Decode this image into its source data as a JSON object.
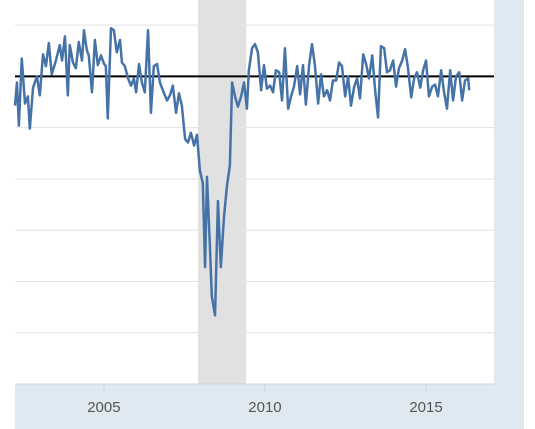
{
  "chart_data": {
    "type": "line",
    "x": [
      2002.24,
      2002.3,
      2002.36,
      2002.45,
      2002.55,
      2002.64,
      2002.7,
      2002.8,
      2002.92,
      2003.01,
      2003.11,
      2003.2,
      2003.29,
      2003.38,
      2003.51,
      2003.63,
      2003.7,
      2003.79,
      2003.88,
      2003.94,
      2004.04,
      2004.13,
      2004.22,
      2004.32,
      2004.38,
      2004.47,
      2004.53,
      2004.63,
      2004.72,
      2004.81,
      2004.91,
      2005.0,
      2005.06,
      2005.12,
      2005.22,
      2005.31,
      2005.4,
      2005.5,
      2005.56,
      2005.65,
      2005.75,
      2005.84,
      2005.93,
      2006.0,
      2006.09,
      2006.18,
      2006.27,
      2006.37,
      2006.46,
      2006.55,
      2006.65,
      2006.74,
      2006.83,
      2006.96,
      2007.05,
      2007.14,
      2007.24,
      2007.33,
      2007.42,
      2007.52,
      2007.61,
      2007.7,
      2007.8,
      2007.89,
      2007.98,
      2008.07,
      2008.14,
      2008.2,
      2008.29,
      2008.35,
      2008.45,
      2008.54,
      2008.63,
      2008.73,
      2008.82,
      2008.91,
      2008.98,
      2009.07,
      2009.16,
      2009.26,
      2009.35,
      2009.44,
      2009.5,
      2009.6,
      2009.69,
      2009.78,
      2009.88,
      2009.97,
      2010.06,
      2010.16,
      2010.25,
      2010.34,
      2010.44,
      2010.53,
      2010.62,
      2010.72,
      2010.81,
      2010.9,
      2011.0,
      2011.09,
      2011.18,
      2011.27,
      2011.37,
      2011.46,
      2011.55,
      2011.65,
      2011.74,
      2011.83,
      2011.93,
      2012.02,
      2012.11,
      2012.21,
      2012.3,
      2012.39,
      2012.49,
      2012.58,
      2012.67,
      2012.77,
      2012.86,
      2012.95,
      2013.05,
      2013.14,
      2013.23,
      2013.33,
      2013.42,
      2013.51,
      2013.6,
      2013.7,
      2013.79,
      2013.88,
      2013.98,
      2014.07,
      2014.16,
      2014.26,
      2014.35,
      2014.44,
      2014.54,
      2014.63,
      2014.72,
      2014.82,
      2014.91,
      2015.0,
      2015.09,
      2015.19,
      2015.28,
      2015.37,
      2015.47,
      2015.56,
      2015.65,
      2015.75,
      2015.84,
      2015.93,
      2016.03,
      2016.12,
      2016.21,
      2016.31,
      2016.34
    ],
    "series": [
      {
        "color": "#4572a7",
        "values": [
          -57,
          -12,
          -96,
          35,
          -53,
          -39,
          -102,
          -22,
          0,
          -37,
          43,
          20,
          65,
          4,
          31,
          61,
          31,
          78,
          -37,
          61,
          27,
          16,
          67,
          31,
          90,
          51,
          41,
          -31,
          71,
          22,
          41,
          25,
          20,
          -82,
          94,
          90,
          47,
          71,
          27,
          20,
          -4,
          -18,
          -4,
          -31,
          24,
          -12,
          -31,
          90,
          -71,
          20,
          24,
          -12,
          -27,
          -47,
          -37,
          -18,
          -71,
          -33,
          -57,
          -122,
          -129,
          -110,
          -135,
          -114,
          -184,
          -208,
          -372,
          -196,
          -331,
          -429,
          -466,
          -243,
          -372,
          -272,
          -214,
          -174,
          -12,
          -39,
          -59,
          -39,
          -12,
          -63,
          12,
          55,
          63,
          47,
          -27,
          22,
          -24,
          -18,
          -31,
          12,
          8,
          -47,
          55,
          -63,
          -39,
          -20,
          20,
          -35,
          22,
          -55,
          22,
          63,
          22,
          -53,
          4,
          -39,
          -27,
          -47,
          -8,
          -8,
          27,
          20,
          -39,
          0,
          -57,
          -20,
          -4,
          -43,
          43,
          24,
          -4,
          41,
          -27,
          -80,
          59,
          55,
          8,
          12,
          31,
          -20,
          16,
          31,
          53,
          16,
          -41,
          -4,
          8,
          -22,
          12,
          31,
          -39,
          -20,
          -16,
          -39,
          12,
          -31,
          -63,
          12,
          -47,
          0,
          8,
          -47,
          -8,
          -4,
          -27
        ]
      }
    ],
    "xlim": [
      2002.24,
      2017.11
    ],
    "xticks": [
      2005,
      2010,
      2015
    ],
    "ylim": [
      -600,
      149
    ],
    "yticks": [
      -500,
      -400,
      -300,
      -200,
      -100,
      0,
      100
    ],
    "grid": true,
    "reference_line": 0,
    "shaded_ranges": [
      [
        2007.92,
        2009.42
      ]
    ]
  }
}
